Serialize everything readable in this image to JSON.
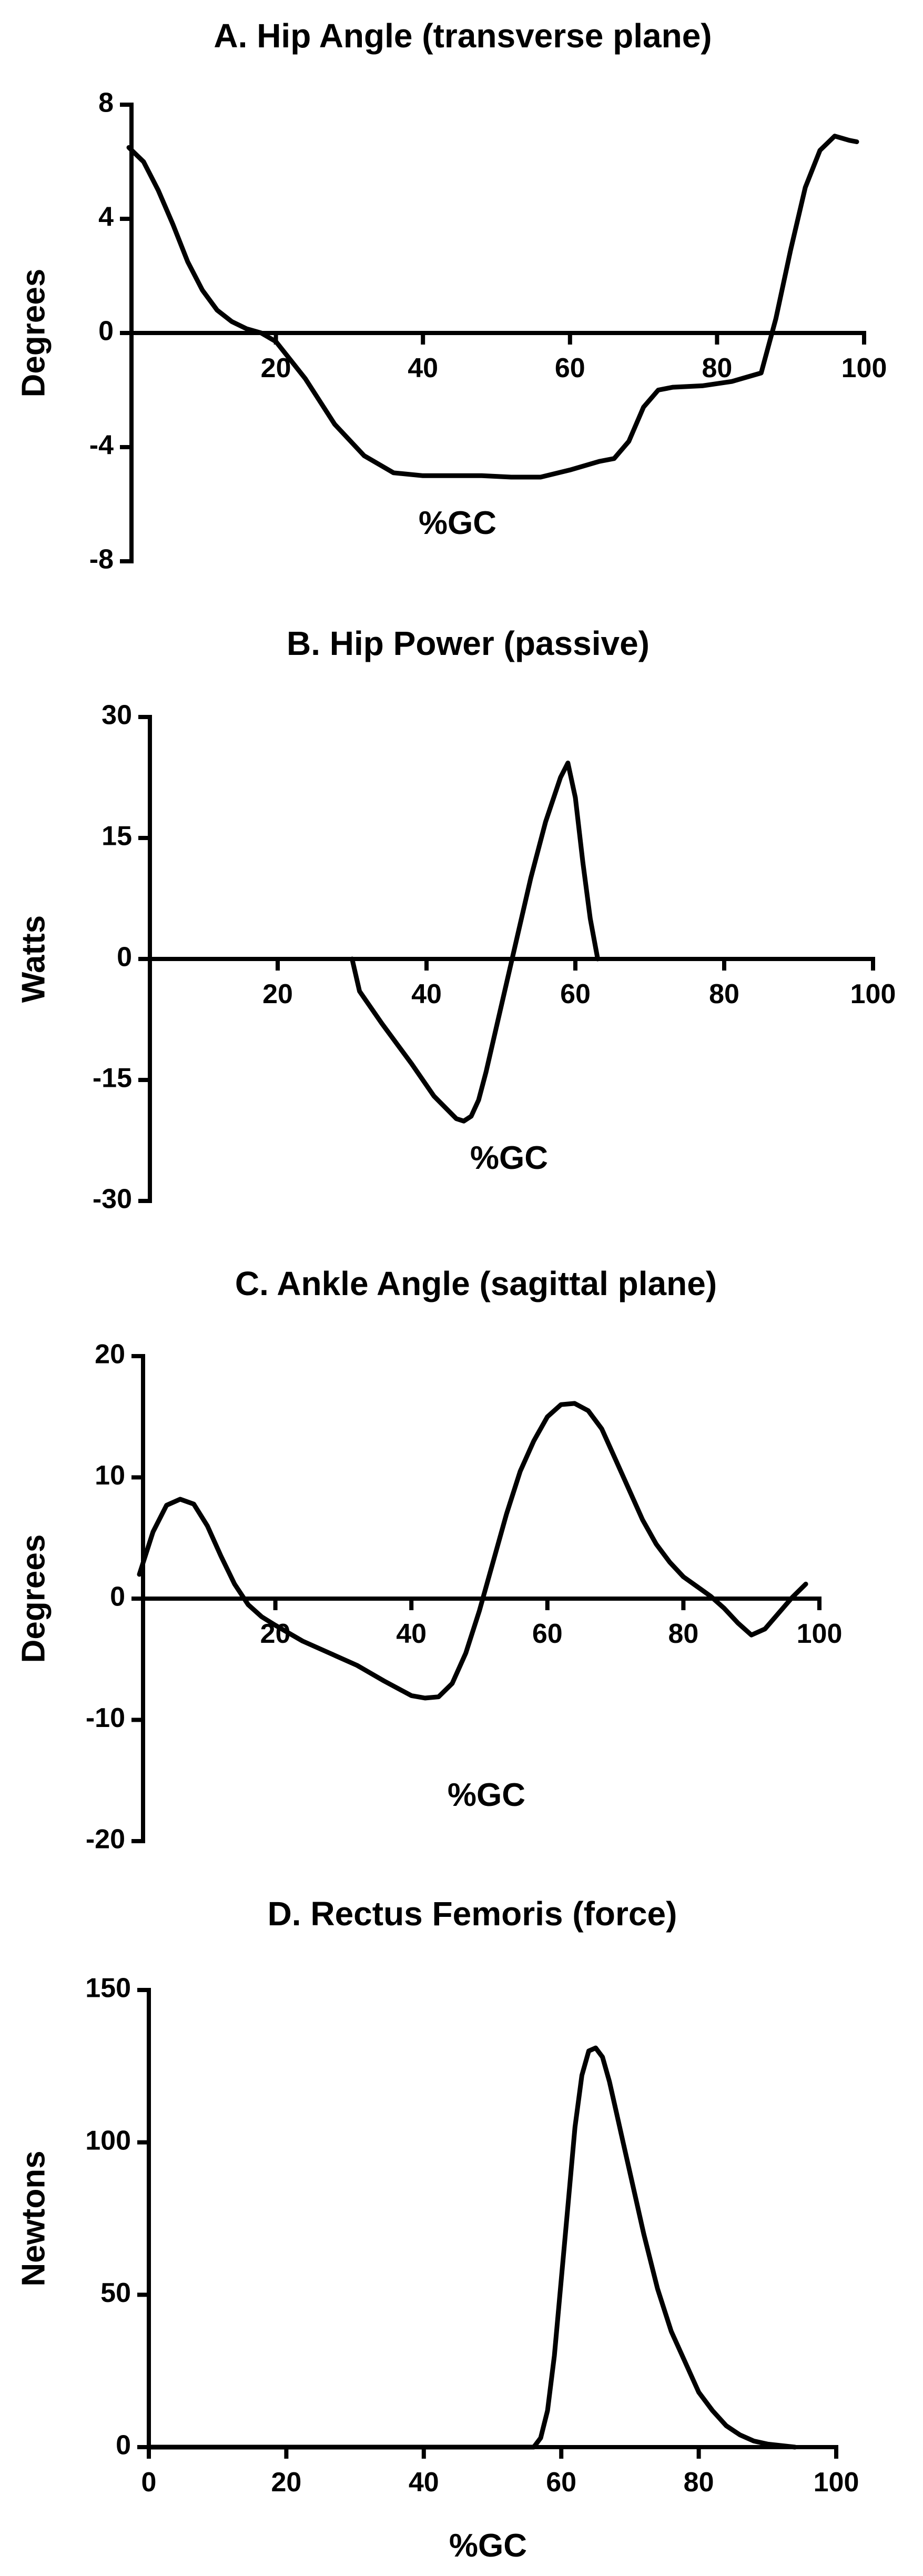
{
  "chart_data": [
    {
      "type": "line",
      "title": "A. Hip Angle (transverse plane)",
      "xlabel": "%GC",
      "ylabel": "Degrees",
      "xlim": [
        0,
        100
      ],
      "ylim": [
        -8,
        8
      ],
      "xticks": [
        20,
        40,
        60,
        80,
        100
      ],
      "yticks": [
        8,
        4,
        0,
        -4,
        -8
      ],
      "xtick_labels": [
        "20",
        "40",
        "60",
        "80",
        "100"
      ],
      "ytick_labels": [
        "8",
        "4",
        "0",
        "-4",
        "-8"
      ],
      "x_axis_at": 0,
      "grid": false,
      "series": [
        {
          "x": [
            0,
            2,
            4,
            6,
            8,
            10,
            12,
            14,
            16,
            18,
            20,
            24,
            28,
            32,
            36,
            40,
            44,
            48,
            52,
            56,
            60,
            64,
            66,
            68,
            70,
            72,
            74,
            78,
            82,
            86,
            88,
            90,
            92,
            94,
            96,
            98,
            99
          ],
          "y": [
            6.5,
            6.0,
            5.0,
            3.8,
            2.5,
            1.5,
            0.8,
            0.4,
            0.15,
            0.0,
            -0.3,
            -1.6,
            -3.2,
            -4.3,
            -4.9,
            -5.0,
            -5.0,
            -5.0,
            -5.05,
            -5.05,
            -4.8,
            -4.5,
            -4.4,
            -3.8,
            -2.6,
            -2.0,
            -1.9,
            -1.85,
            -1.7,
            -1.4,
            0.5,
            2.9,
            5.1,
            6.4,
            6.9,
            6.75,
            6.7
          ]
        }
      ]
    },
    {
      "type": "line",
      "title": "B. Hip Power  (passive)",
      "xlabel": "%GC",
      "ylabel": "Watts",
      "xlim": [
        0,
        100
      ],
      "ylim": [
        -30,
        30
      ],
      "xticks": [
        20,
        40,
        60,
        80,
        100
      ],
      "yticks": [
        30,
        15,
        0,
        -15,
        -30
      ],
      "xtick_labels": [
        "20",
        "40",
        "60",
        "80",
        "100"
      ],
      "ytick_labels": [
        "30",
        "15",
        "0",
        "-15",
        "-30"
      ],
      "x_axis_at": 0,
      "grid": false,
      "series": [
        {
          "x": [
            30,
            31,
            34,
            38,
            41,
            44,
            45,
            46,
            47,
            48,
            50,
            52,
            54,
            56,
            58,
            59,
            60,
            61,
            62,
            63
          ],
          "y": [
            0,
            -4,
            -8,
            -13,
            -17,
            -19.8,
            -20.1,
            -19.5,
            -17.5,
            -14,
            -6,
            2,
            10,
            17,
            22.5,
            24.3,
            20,
            12,
            5,
            0
          ]
        }
      ]
    },
    {
      "type": "line",
      "title": "C. Ankle Angle (sagittal plane)",
      "xlabel": "%GC",
      "ylabel": "Degrees",
      "xlim": [
        0,
        100
      ],
      "ylim": [
        -20,
        20
      ],
      "xticks": [
        20,
        40,
        60,
        80,
        100
      ],
      "yticks": [
        20,
        10,
        0,
        -10,
        -20
      ],
      "xtick_labels": [
        "20",
        "40",
        "60",
        "80",
        "100"
      ],
      "ytick_labels": [
        "20",
        "10",
        "0",
        "-10",
        "-20"
      ],
      "x_axis_at": 0,
      "grid": false,
      "series": [
        {
          "x": [
            0,
            2,
            4,
            6,
            8,
            10,
            12,
            14,
            16,
            18,
            20,
            24,
            28,
            32,
            36,
            40,
            42,
            44,
            46,
            48,
            50,
            52,
            54,
            56,
            58,
            60,
            62,
            64,
            66,
            68,
            70,
            72,
            74,
            76,
            78,
            80,
            82,
            84,
            86,
            88,
            90,
            92,
            94,
            96,
            98
          ],
          "y": [
            2,
            5.5,
            7.7,
            8.2,
            7.8,
            6,
            3.5,
            1.2,
            -0.5,
            -1.5,
            -2.2,
            -3.5,
            -4.5,
            -5.5,
            -6.8,
            -8,
            -8.2,
            -8.1,
            -7,
            -4.5,
            -1,
            3,
            7,
            10.5,
            13,
            15,
            16,
            16.1,
            15.5,
            14,
            11.5,
            9,
            6.5,
            4.5,
            3,
            1.8,
            1,
            0.2,
            -0.8,
            -2,
            -3,
            -2.5,
            -1.2,
            0.1,
            1.2
          ]
        }
      ]
    },
    {
      "type": "line",
      "title": "D. Rectus Femoris  (force)",
      "xlabel": "%GC",
      "ylabel": "Newtons",
      "xlim": [
        0,
        100
      ],
      "ylim": [
        0,
        150
      ],
      "xticks": [
        0,
        20,
        40,
        60,
        80,
        100
      ],
      "yticks": [
        150,
        100,
        50,
        0
      ],
      "xtick_labels": [
        "0",
        "20",
        "40",
        "60",
        "80",
        "100"
      ],
      "ytick_labels": [
        "150",
        "100",
        "50",
        "0"
      ],
      "x_axis_at": 0,
      "grid": false,
      "series": [
        {
          "x": [
            0,
            56,
            57,
            58,
            59,
            60,
            61,
            62,
            63,
            64,
            65,
            66,
            67,
            68,
            69,
            70,
            72,
            74,
            76,
            78,
            80,
            82,
            84,
            86,
            88,
            90,
            92,
            94
          ],
          "y": [
            0,
            0,
            3,
            12,
            30,
            55,
            80,
            105,
            122,
            130,
            131,
            128,
            120,
            110,
            100,
            90,
            70,
            52,
            38,
            28,
            18,
            12,
            7,
            4,
            2,
            1,
            0.5,
            0
          ]
        }
      ]
    }
  ]
}
